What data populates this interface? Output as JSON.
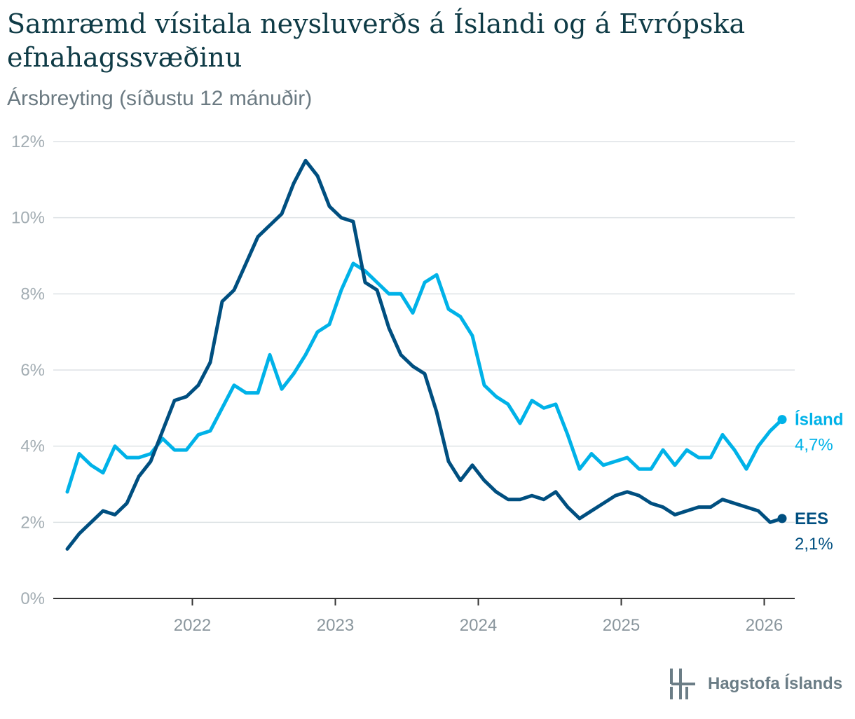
{
  "title": "Samræmd vísitala neysluverðs á Íslandi og á Evrópska efnahagssvæðinu",
  "subtitle": "Ársbreyting (síðustu 12 mánuðir)",
  "brand": {
    "name": "Hagstofa Íslands",
    "logo_icon": "hagstofa-logo-icon",
    "color": "#6b7d86"
  },
  "chart_data": {
    "type": "line",
    "title": "Samræmd vísitala neysluverðs á Íslandi og á Evrópska efnahagssvæðinu",
    "subtitle": "Ársbreyting (síðustu 12 mánuðir)",
    "xlabel": "",
    "ylabel": "",
    "ylim": [
      0,
      12
    ],
    "y_ticks": [
      "0%",
      "2%",
      "4%",
      "6%",
      "8%",
      "10%",
      "12%"
    ],
    "x_ticks": [
      "2022",
      "2023",
      "2024",
      "2025",
      "2026"
    ],
    "grid": true,
    "legend": "end-of-line labels",
    "x_start": "2021-02",
    "x_end": "2026-01",
    "series": [
      {
        "name": "Ísland",
        "end_label": "4,7%",
        "color": "#00b2e8",
        "values": [
          2.8,
          3.8,
          3.5,
          3.3,
          4.0,
          3.7,
          3.7,
          3.8,
          4.2,
          3.9,
          3.9,
          4.3,
          4.4,
          5.0,
          5.6,
          5.4,
          5.4,
          6.4,
          5.5,
          5.9,
          6.4,
          7.0,
          7.2,
          8.1,
          8.8,
          8.6,
          8.3,
          8.0,
          8.0,
          7.5,
          8.3,
          8.5,
          7.6,
          7.4,
          6.9,
          5.6,
          5.3,
          5.1,
          4.6,
          5.2,
          5.0,
          5.1,
          4.3,
          3.4,
          3.8,
          3.5,
          3.6,
          3.7,
          3.4,
          3.4,
          3.9,
          3.5,
          3.9,
          3.7,
          3.7,
          4.3,
          3.9,
          3.4,
          4.0,
          4.4,
          4.7
        ]
      },
      {
        "name": "EES",
        "end_label": "2,1%",
        "color": "#004f80",
        "values": [
          1.3,
          1.7,
          2.0,
          2.3,
          2.2,
          2.5,
          3.2,
          3.6,
          4.4,
          5.2,
          5.3,
          5.6,
          6.2,
          7.8,
          8.1,
          8.8,
          9.5,
          9.8,
          10.1,
          10.9,
          11.5,
          11.1,
          10.3,
          10.0,
          9.9,
          8.3,
          8.1,
          7.1,
          6.4,
          6.1,
          5.9,
          4.9,
          3.6,
          3.1,
          3.5,
          3.1,
          2.8,
          2.6,
          2.6,
          2.7,
          2.6,
          2.8,
          2.4,
          2.1,
          2.3,
          2.5,
          2.7,
          2.8,
          2.7,
          2.5,
          2.4,
          2.2,
          2.3,
          2.4,
          2.4,
          2.6,
          2.5,
          2.4,
          2.3,
          2.0,
          2.1
        ]
      }
    ]
  }
}
